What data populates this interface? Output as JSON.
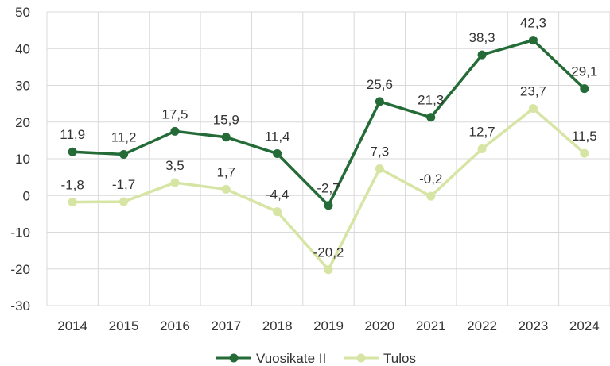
{
  "chart_data": {
    "type": "line",
    "title": "",
    "xlabel": "",
    "ylabel": "",
    "categories": [
      "2014",
      "2015",
      "2016",
      "2017",
      "2018",
      "2019",
      "2020",
      "2021",
      "2022",
      "2023",
      "2024"
    ],
    "ylim": [
      -30,
      50
    ],
    "yticks": [
      "-30",
      "-20",
      "-10",
      "0",
      "10",
      "20",
      "30",
      "40",
      "50"
    ],
    "grid": true,
    "legend_position": "bottom",
    "series": [
      {
        "name": "Vuosikate II",
        "color": "#246b37",
        "values": [
          11.9,
          11.2,
          17.5,
          15.9,
          11.4,
          -2.7,
          25.6,
          21.3,
          38.3,
          42.3,
          29.1
        ],
        "labels": [
          "11,9",
          "11,2",
          "17,5",
          "15,9",
          "11,4",
          "-2,7",
          "25,6",
          "21,3",
          "38,3",
          "42,3",
          "29,1"
        ]
      },
      {
        "name": "Tulos",
        "color": "#d6e4a4",
        "values": [
          -1.8,
          -1.7,
          3.5,
          1.7,
          -4.4,
          -20.2,
          7.3,
          -0.2,
          12.7,
          23.7,
          11.5
        ],
        "labels": [
          "-1,8",
          "-1,7",
          "3,5",
          "1,7",
          "-4,4",
          "-20,2",
          "7,3",
          "-0,2",
          "12,7",
          "23,7",
          "11,5"
        ]
      }
    ]
  }
}
